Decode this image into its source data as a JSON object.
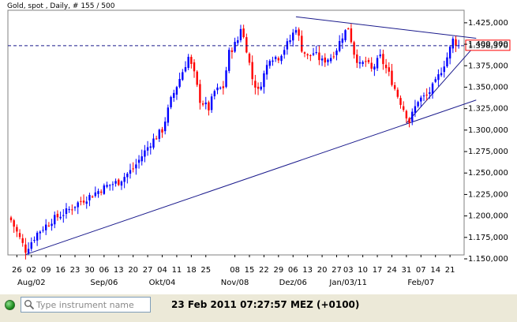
{
  "chart_data": {
    "type": "candlestick",
    "title": "Gold, spot , Daily, # 155 / 500",
    "ylim": [
      1150000,
      1435000
    ],
    "y_ticks": [
      "1.425,000",
      "1.400,000",
      "1.375,000",
      "1.350,000",
      "1.325,000",
      "1.300,000",
      "1.275,000",
      "1.250,000",
      "1.225,000",
      "1.200,000",
      "1.175,000",
      "1.150,000"
    ],
    "y_tick_values": [
      1425000,
      1400000,
      1375000,
      1350000,
      1325000,
      1300000,
      1275000,
      1250000,
      1225000,
      1200000,
      1175000,
      1150000
    ],
    "x_day_labels": [
      "26",
      "02",
      "09",
      "16",
      "23",
      "30",
      "06",
      "13",
      "20",
      "27",
      "04",
      "11",
      "18",
      "25",
      "08",
      "15",
      "22",
      "29",
      "06",
      "13",
      "20",
      "27",
      "03",
      "10",
      "17",
      "24",
      "31",
      "07",
      "14",
      "21"
    ],
    "x_day_index": [
      2,
      7,
      12,
      17,
      22,
      27,
      32,
      37,
      42,
      47,
      52,
      57,
      62,
      67,
      77,
      82,
      87,
      92,
      97,
      102,
      107,
      112,
      116,
      121,
      126,
      131,
      136,
      141,
      146,
      151
    ],
    "x_month_labels": [
      "Aug/02",
      "Sep/06",
      "Okt/04",
      "Nov/08",
      "Dez/06",
      "Jan/03/11",
      "Feb/07"
    ],
    "x_month_index": [
      7,
      32,
      52,
      77,
      97,
      116,
      141
    ],
    "num_candles": 155,
    "current_price": 1398370,
    "current_price_label": "1.398,370",
    "up_color": "#0000ff",
    "down_color": "#ff0000",
    "keypoints": [
      [
        0,
        1195000
      ],
      [
        5,
        1160000
      ],
      [
        9,
        1180000
      ],
      [
        14,
        1195000
      ],
      [
        19,
        1205000
      ],
      [
        23,
        1215000
      ],
      [
        28,
        1225000
      ],
      [
        33,
        1235000
      ],
      [
        37,
        1240000
      ],
      [
        42,
        1255000
      ],
      [
        48,
        1285000
      ],
      [
        52,
        1300000
      ],
      [
        55,
        1335000
      ],
      [
        58,
        1360000
      ],
      [
        61,
        1385000
      ],
      [
        63,
        1365000
      ],
      [
        65,
        1335000
      ],
      [
        68,
        1325000
      ],
      [
        70,
        1345000
      ],
      [
        73,
        1350000
      ],
      [
        75,
        1390000
      ],
      [
        78,
        1405000
      ],
      [
        79,
        1420000
      ],
      [
        81,
        1395000
      ],
      [
        83,
        1360000
      ],
      [
        85,
        1345000
      ],
      [
        87,
        1365000
      ],
      [
        89,
        1385000
      ],
      [
        92,
        1385000
      ],
      [
        94,
        1395000
      ],
      [
        96,
        1405000
      ],
      [
        98,
        1420000
      ],
      [
        100,
        1395000
      ],
      [
        102,
        1385000
      ],
      [
        104,
        1390000
      ],
      [
        107,
        1380000
      ],
      [
        110,
        1385000
      ],
      [
        112,
        1395000
      ],
      [
        114,
        1410000
      ],
      [
        116,
        1420000
      ],
      [
        118,
        1390000
      ],
      [
        120,
        1375000
      ],
      [
        122,
        1380000
      ],
      [
        124,
        1370000
      ],
      [
        127,
        1385000
      ],
      [
        130,
        1365000
      ],
      [
        133,
        1340000
      ],
      [
        135,
        1325000
      ],
      [
        137,
        1310000
      ],
      [
        140,
        1335000
      ],
      [
        143,
        1340000
      ],
      [
        146,
        1355000
      ],
      [
        148,
        1370000
      ],
      [
        150,
        1385000
      ],
      [
        152,
        1405000
      ],
      [
        154,
        1398370
      ]
    ],
    "trendlines": [
      {
        "from": [
          5,
          1155000
        ],
        "to": [
          160,
          1335000
        ]
      },
      {
        "from": [
          136,
          1308000
        ],
        "to": [
          160,
          1400000
        ]
      },
      {
        "from": [
          98,
          1432000
        ],
        "to": [
          160,
          1407000
        ]
      }
    ]
  },
  "status": {
    "search_placeholder": "Type instrument name",
    "timestamp": "23 Feb 2011 07:27:57  MEZ (+0100)",
    "connection_color": "#1a8a1a"
  }
}
